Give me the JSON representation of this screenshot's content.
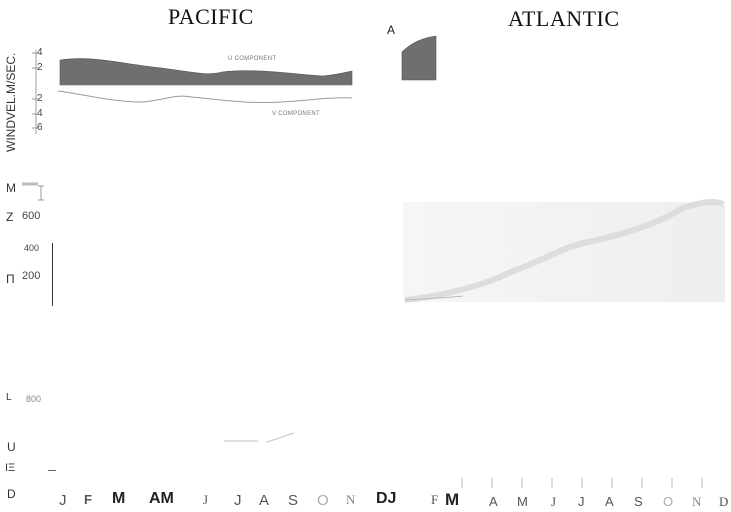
{
  "header": {
    "pacific": "PACIFIC",
    "atlantic": "ATLANTIC",
    "panel_a": "A"
  },
  "wind_panel": {
    "ylabel": "WINDVEL.M/SEC.",
    "upper_ticks": [
      "4",
      "2"
    ],
    "lower_ticks": [
      "2",
      "4",
      "6"
    ],
    "upper_component": "U COMPONENT",
    "lower_component": "V COMPONENT",
    "fill_color": "#6f6f6f"
  },
  "middle_panel": {
    "marker_letters": [
      "M",
      "Z",
      "Π"
    ],
    "ticks": [
      "600",
      "400",
      "200"
    ]
  },
  "lower_panel": {
    "marker_letters": [
      "L",
      "U",
      "ΙΞ",
      "D"
    ],
    "tick": "800"
  },
  "months": {
    "pacific": [
      "J",
      "F",
      "M",
      "AM",
      "J",
      "J",
      "A",
      "S",
      "O",
      "N",
      "DJ"
    ],
    "atlantic": [
      "F",
      "M",
      "A",
      "M",
      "J",
      "J",
      "A",
      "S",
      "O",
      "N",
      "D"
    ]
  }
}
